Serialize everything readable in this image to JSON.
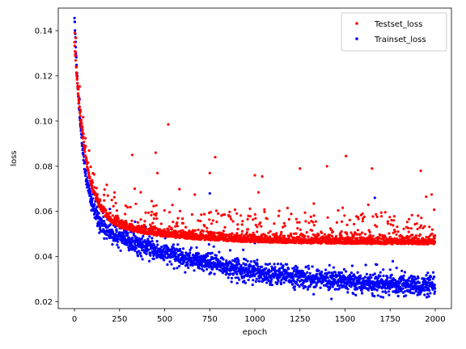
{
  "chart_data": {
    "type": "scatter",
    "xlabel": "epoch",
    "ylabel": "loss",
    "xlim": [
      -90,
      2090
    ],
    "ylim": [
      0.017,
      0.15
    ],
    "xticks": [
      0,
      250,
      500,
      750,
      1000,
      1250,
      1500,
      1750,
      2000
    ],
    "yticks": [
      0.02,
      0.04,
      0.06,
      0.08,
      0.1,
      0.12,
      0.14
    ],
    "ytick_labels": [
      "0.02",
      "0.04",
      "0.06",
      "0.08",
      "0.10",
      "0.12",
      "0.14"
    ],
    "legend_position": "top-right",
    "grid": false,
    "epochs": 2000,
    "series": [
      {
        "name": "Testset_loss",
        "color": "#ff0000",
        "marker": "point",
        "approx_curve": {
          "start": 0.135,
          "floor": 0.046,
          "decay_epochs": 60,
          "mid_component": 0.012,
          "mid_decay_epochs": 400
        },
        "outliers": [
          {
            "x": 520,
            "y": 0.0985
          },
          {
            "x": 320,
            "y": 0.085
          },
          {
            "x": 450,
            "y": 0.086
          },
          {
            "x": 780,
            "y": 0.084
          },
          {
            "x": 1000,
            "y": 0.076
          },
          {
            "x": 1250,
            "y": 0.079
          },
          {
            "x": 1400,
            "y": 0.08
          },
          {
            "x": 1505,
            "y": 0.0845
          },
          {
            "x": 1650,
            "y": 0.079
          },
          {
            "x": 1920,
            "y": 0.078
          },
          {
            "x": 750,
            "y": 0.077
          },
          {
            "x": 460,
            "y": 0.077
          },
          {
            "x": 1980,
            "y": 0.0675
          }
        ]
      },
      {
        "name": "Trainset_loss",
        "color": "#0000ff",
        "marker": "point",
        "approx_curve": {
          "start": 0.146,
          "floor": 0.024,
          "decay_epochs": 45,
          "mid_component": 0.033,
          "mid_decay_epochs": 800
        },
        "outliers": [
          {
            "x": 750,
            "y": 0.068
          },
          {
            "x": 1665,
            "y": 0.066
          },
          {
            "x": 520,
            "y": 0.052
          },
          {
            "x": 1000,
            "y": 0.046
          }
        ]
      }
    ]
  }
}
